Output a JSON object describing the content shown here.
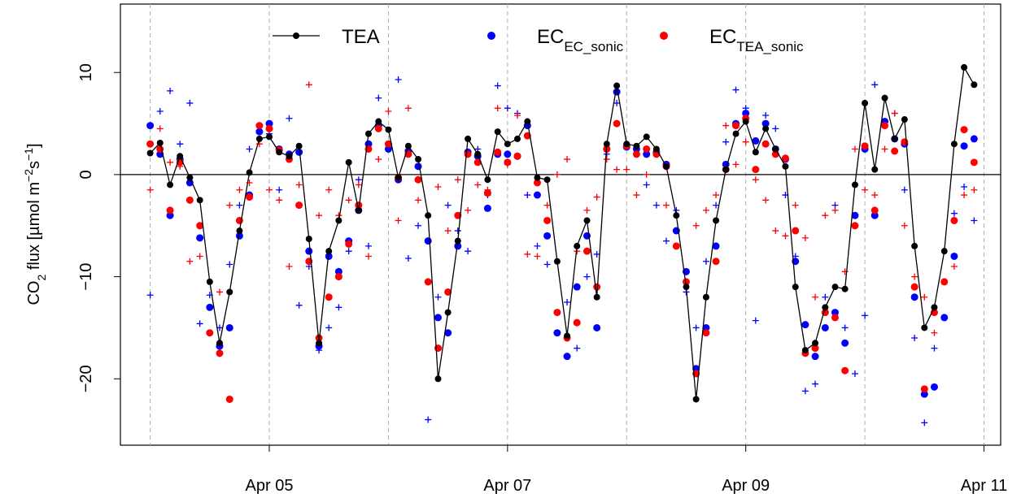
{
  "chart_data": {
    "type": "scatter",
    "ylabel": [
      {
        "text": "CO"
      },
      {
        "text": "2",
        "shift": "sub"
      },
      {
        "text": " flux [µmol m"
      },
      {
        "text": "−2",
        "shift": "super"
      },
      {
        "text": "s"
      },
      {
        "text": "−1",
        "shift": "super"
      },
      {
        "text": "]"
      }
    ],
    "xlim": [
      3.75,
      11.14
    ],
    "ylim": [
      -26.5,
      16.7
    ],
    "xticks": [
      {
        "value": 5,
        "label": "Apr 05"
      },
      {
        "value": 7,
        "label": "Apr 07"
      },
      {
        "value": 9,
        "label": "Apr 09"
      },
      {
        "value": 11,
        "label": "Apr 11"
      }
    ],
    "xgrid": [
      4,
      5,
      6,
      7,
      8,
      9,
      10,
      11
    ],
    "yticks": [
      {
        "value": -20,
        "label": "−20"
      },
      {
        "value": -10,
        "label": "−10"
      },
      0,
      10
    ],
    "hline": 0,
    "x": [
      4,
      4.083,
      4.167,
      4.25,
      4.333,
      4.417,
      4.5,
      4.583,
      4.667,
      4.75,
      4.833,
      4.917,
      5,
      5.083,
      5.167,
      5.25,
      5.333,
      5.417,
      5.5,
      5.583,
      5.667,
      5.75,
      5.833,
      5.917,
      6,
      6.083,
      6.167,
      6.25,
      6.333,
      6.417,
      6.5,
      6.583,
      6.667,
      6.75,
      6.833,
      6.917,
      7,
      7.083,
      7.167,
      7.25,
      7.333,
      7.417,
      7.5,
      7.583,
      7.667,
      7.75,
      7.833,
      7.917,
      8,
      8.083,
      8.167,
      8.25,
      8.333,
      8.417,
      8.5,
      8.583,
      8.667,
      8.75,
      8.833,
      8.917,
      9,
      9.083,
      9.167,
      9.25,
      9.333,
      9.417,
      9.5,
      9.583,
      9.667,
      9.75,
      9.833,
      9.917,
      10,
      10.083,
      10.167,
      10.25,
      10.333,
      10.417,
      10.5,
      10.583,
      10.667,
      10.75,
      10.833,
      10.917
    ],
    "series": [
      {
        "name": "TEA",
        "color": "#000000",
        "marker": "line-point",
        "values": [
          2.1,
          3.1,
          -1.0,
          1.8,
          -0.3,
          -2.5,
          -10.5,
          -16.5,
          -11.5,
          -5.5,
          0.2,
          3.5,
          3.7,
          2.2,
          1.8,
          2.8,
          -6.3,
          -16.5,
          -7.5,
          -4.5,
          1.2,
          -3.5,
          4.0,
          5.2,
          4.4,
          -0.3,
          2.8,
          1.5,
          -4.0,
          -20.0,
          -13.5,
          -6.5,
          3.5,
          2.0,
          -0.5,
          4.2,
          3.0,
          3.5,
          5.2,
          -0.3,
          -0.5,
          -8.5,
          -15.8,
          -7.0,
          -4.5,
          -12.0,
          3.0,
          8.7,
          3.0,
          2.8,
          3.7,
          2.5,
          0.8,
          -4.0,
          -11.0,
          -22.0,
          -12.0,
          -4.5,
          0.5,
          4.0,
          5.2,
          2.2,
          4.5,
          2.5,
          0.8,
          -11.0,
          -17.2,
          -16.5,
          -13.0,
          -11.0,
          -11.2,
          -1.0,
          7.0,
          0.5,
          7.5,
          3.5,
          5.4,
          -7.0,
          -15.0,
          -13.0,
          -7.5,
          3.0,
          10.5,
          8.8
        ]
      },
      {
        "name": "EC",
        "name_sub": "EC_sonic",
        "color": "#0000ff",
        "marker": "dot",
        "values": [
          4.8,
          2.0,
          -4.0,
          1.5,
          -0.8,
          -6.2,
          -13.0,
          -16.8,
          -15.0,
          -6.0,
          -2.0,
          4.2,
          5.0,
          2.5,
          2.0,
          2.2,
          -7.5,
          -16.8,
          -8.0,
          -9.5,
          -6.5,
          -3.5,
          3.0,
          4.8,
          2.5,
          -0.5,
          2.3,
          0.8,
          -6.5,
          -14.0,
          -15.5,
          -7.0,
          2.2,
          1.8,
          -3.3,
          2.0,
          2.0,
          1.8,
          4.8,
          -2.0,
          -6.0,
          -15.5,
          -17.8,
          -11.0,
          -6.0,
          -15.0,
          2.5,
          8.1,
          2.7,
          2.5,
          2.0,
          2.2,
          1.0,
          -5.5,
          -9.5,
          -19.0,
          -15.0,
          -7.0,
          1.0,
          5.0,
          6.0,
          3.3,
          5.0,
          2.5,
          1.5,
          -8.5,
          -14.7,
          -17.8,
          -15.0,
          -13.5,
          -16.5,
          -4.0,
          2.5,
          -4.0,
          5.2,
          3.5,
          3.0,
          -12.0,
          -21.5,
          -20.8,
          -14.0,
          -8.0,
          2.8,
          3.5
        ]
      },
      {
        "name": "EC",
        "name_sub": "TEA_sonic",
        "color": "#ff0000",
        "marker": "dot",
        "values": [
          3.0,
          2.5,
          -3.5,
          1.2,
          -2.5,
          -5.0,
          -15.5,
          -17.5,
          -22.0,
          -4.5,
          -2.2,
          4.8,
          4.5,
          2.4,
          1.5,
          -3.0,
          -8.5,
          -16.0,
          -12.0,
          -10.0,
          -6.8,
          -3.0,
          2.5,
          4.5,
          3.0,
          -0.3,
          2.0,
          -0.5,
          -10.5,
          -17.0,
          -11.5,
          -4.0,
          2.0,
          1.2,
          -1.8,
          2.2,
          1.2,
          1.8,
          3.8,
          -0.8,
          -4.5,
          -13.5,
          -16.0,
          -14.5,
          -7.5,
          -11.0,
          2.5,
          5.0,
          2.8,
          2.0,
          2.5,
          2.0,
          0.8,
          -7.0,
          -10.5,
          -19.5,
          -15.5,
          -8.5,
          0.5,
          4.8,
          5.5,
          0.5,
          3.0,
          2.0,
          1.6,
          -5.5,
          -17.5,
          -17.0,
          -13.5,
          -14.0,
          -19.2,
          -5.0,
          2.8,
          -3.5,
          4.8,
          2.3,
          3.2,
          -11.0,
          -21.0,
          -13.5,
          -10.5,
          -4.5,
          4.4,
          1.2
        ]
      },
      {
        "color": "#0000ff",
        "marker": "plus",
        "values": [
          -11.8,
          6.2,
          8.2,
          3.0,
          7.0,
          -14.6,
          -11.8,
          -15.0,
          -8.8,
          -3.0,
          2.5,
          3.5,
          4.0,
          -1.5,
          5.5,
          -12.8,
          -9.0,
          -17.2,
          -15.0,
          -13.0,
          -7.5,
          -0.5,
          -7.0,
          7.5,
          3.0,
          9.3,
          -8.2,
          -5.0,
          -24.0,
          -12.0,
          -3.0,
          -5.5,
          -7.5,
          2.5,
          -2.0,
          8.7,
          6.5,
          6.0,
          -2.0,
          -7.0,
          -8.8,
          -15.5,
          -12.5,
          -17.0,
          -10.0,
          -7.8,
          2.0,
          7.0,
          3.0,
          2.0,
          -1.0,
          -3.0,
          -6.5,
          -3.5,
          -11.5,
          -15.0,
          -8.5,
          -3.0,
          3.2,
          8.3,
          6.5,
          -14.3,
          5.8,
          4.5,
          -2.0,
          -8.0,
          -21.2,
          -20.5,
          -12.0,
          -3.0,
          -15.0,
          -19.5,
          -13.8,
          8.8,
          7.5,
          6.0,
          -1.5,
          -16.0,
          -24.3,
          -17.0,
          -10.5,
          -3.8,
          -1.2,
          -4.5
        ]
      },
      {
        "color": "#ff0000",
        "marker": "plus",
        "values": [
          -1.5,
          4.5,
          1.2,
          0.8,
          -8.5,
          -8.0,
          -15.5,
          -11.5,
          -3.0,
          -1.5,
          -0.8,
          3.0,
          -1.5,
          -2.5,
          -9.0,
          -1.0,
          8.8,
          -4.0,
          -1.5,
          -4.0,
          -2.5,
          -1.0,
          -8.0,
          1.5,
          6.2,
          -4.5,
          6.5,
          -2.5,
          -4.0,
          -1.2,
          -5.5,
          -0.5,
          -3.5,
          -1.0,
          -1.5,
          6.5,
          1.0,
          5.8,
          -7.8,
          -8.0,
          -3.0,
          0.0,
          1.5,
          -7.5,
          -3.5,
          -2.2,
          1.5,
          0.5,
          0.5,
          -2.0,
          0.0,
          2.0,
          -3.0,
          -7.0,
          -10.5,
          -5.0,
          -3.5,
          -2.0,
          4.8,
          1.0,
          3.2,
          -0.5,
          -2.5,
          -5.5,
          -6.0,
          -3.0,
          -6.2,
          -12.0,
          -4.0,
          -3.5,
          -9.5,
          2.5,
          -1.5,
          -2.0,
          2.5,
          6.0,
          -5.0,
          -10.0,
          -12.0,
          -15.5,
          -14.0,
          -9.0,
          -2.0,
          -1.5
        ]
      }
    ]
  }
}
